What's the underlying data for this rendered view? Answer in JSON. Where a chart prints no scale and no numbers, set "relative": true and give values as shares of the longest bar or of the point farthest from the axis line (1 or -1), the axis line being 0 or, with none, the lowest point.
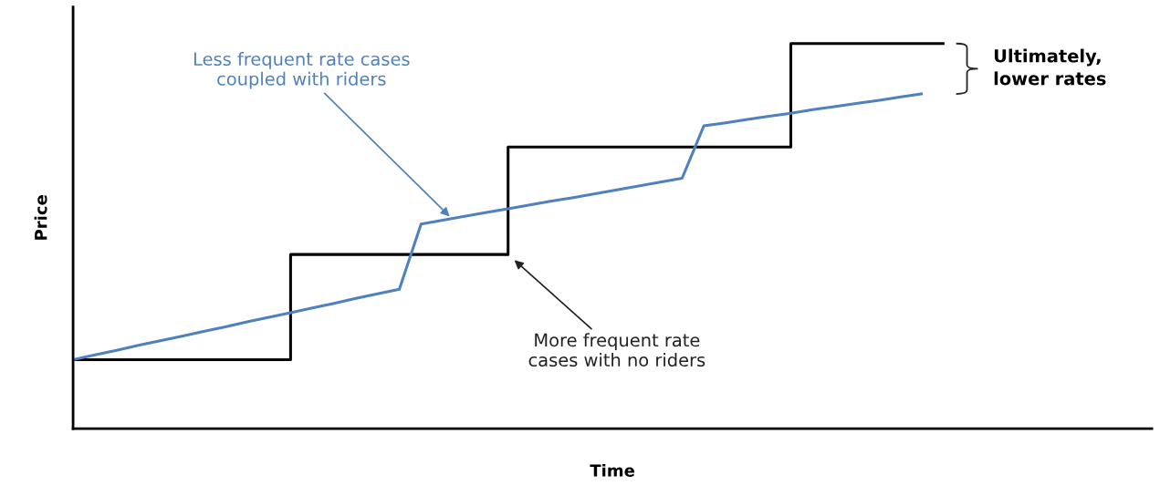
{
  "chart_data": {
    "type": "line",
    "relative": true,
    "xlabel": "Time",
    "ylabel": "Price",
    "categories": [
      null,
      null,
      null,
      null,
      null,
      null,
      null,
      null,
      null,
      null,
      null,
      null,
      null,
      null,
      null,
      null,
      null,
      null,
      null,
      null,
      null,
      null,
      null,
      null,
      null,
      null,
      null,
      null,
      null,
      null,
      null,
      null,
      null,
      null,
      null,
      null,
      null,
      null,
      null,
      null,
      null
    ],
    "series": [
      {
        "type": "step",
        "color": "#000000",
        "values": [
          0.179,
          0.179,
          0.179,
          0.179,
          0.179,
          0.179,
          0.179,
          0.179,
          0.179,
          0.179,
          0.452,
          0.452,
          0.452,
          0.452,
          0.452,
          0.452,
          0.452,
          0.452,
          0.452,
          0.452,
          0.731,
          0.731,
          0.731,
          0.731,
          0.731,
          0.731,
          0.731,
          0.731,
          0.731,
          0.731,
          0.731,
          0.731,
          0.731,
          1.0,
          1.0,
          1.0,
          1.0,
          1.0,
          1.0,
          1.0,
          1.0
        ]
      },
      {
        "color": "#4f81bd",
        "values": [
          0.179,
          0.191,
          0.203,
          0.216,
          0.228,
          0.24,
          0.252,
          0.264,
          0.277,
          0.289,
          0.301,
          0.313,
          0.325,
          0.338,
          0.35,
          0.362,
          0.531,
          0.541,
          0.551,
          0.561,
          0.571,
          0.581,
          0.591,
          0.6,
          0.61,
          0.62,
          0.63,
          0.64,
          0.65,
          0.786,
          0.794,
          0.803,
          0.811,
          0.819,
          0.828,
          0.836,
          0.844,
          0.852,
          0.861,
          0.869,
          null
        ]
      }
    ],
    "annotations": [
      "Less frequent rate cases\ncoupled with riders",
      "More frequent rate\ncases with no riders",
      "Ultimately,\nlower rates"
    ],
    "grid": false,
    "legend": false,
    "marker": "none",
    "line_style": "solid"
  }
}
